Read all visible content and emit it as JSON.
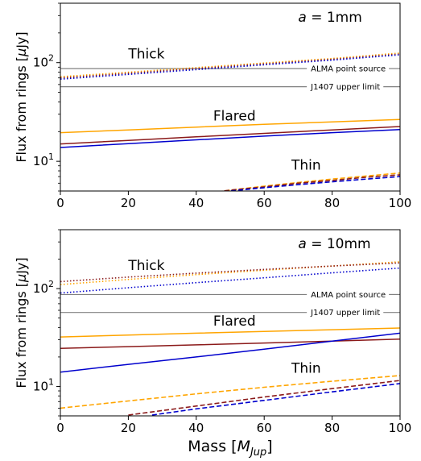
{
  "chart_data": {
    "xlabel_main": "Mass [",
    "xlabel_sym": "M",
    "xlabel_sub": "Jup",
    "xlabel_end": "]",
    "panels": [
      {
        "type": "line",
        "annotation_var": "a",
        "annotation_val": " = 1mm",
        "ylabel_main": "Flux from rings [",
        "ylabel_mu": "μ",
        "ylabel_end": "Jy]",
        "yscale": "log",
        "xlim": [
          0,
          100
        ],
        "ylim": [
          5,
          400
        ],
        "xticks": [
          "0",
          "20",
          "40",
          "60",
          "80",
          "100"
        ],
        "yticks": [
          {
            "v": 10,
            "base": "10",
            "exp": "1"
          },
          {
            "v": 100,
            "base": "10",
            "exp": "2"
          }
        ],
        "groups": [
          {
            "label": "Thick",
            "label_x": 20,
            "label_y": 110
          },
          {
            "label": "Flared",
            "label_x": 45,
            "label_y": 26
          },
          {
            "label": "Thin",
            "label_x": 68,
            "label_y": 8.2
          }
        ],
        "reference_lines": [
          {
            "label": "ALMA point source",
            "y": 87,
            "color": "#808080"
          },
          {
            "label": "J1407 upper limit",
            "y": 57,
            "color": "#808080"
          }
        ],
        "series": [
          {
            "group": "Thick",
            "color": "#ffa500",
            "style": "dotted",
            "x": [
              0,
              20,
              40,
              60,
              80,
              100
            ],
            "y": [
              72,
              80,
              89,
              99,
              110,
              125
            ]
          },
          {
            "group": "Thick",
            "color": "#8b1a1a",
            "style": "dotted",
            "x": [
              0,
              20,
              40,
              60,
              80,
              100
            ],
            "y": [
              70,
              78,
              87,
              97,
              108,
              122
            ]
          },
          {
            "group": "Thick",
            "color": "#0000cd",
            "style": "dotted",
            "x": [
              0,
              20,
              40,
              60,
              80,
              100
            ],
            "y": [
              68,
              76,
              85,
              95,
              106,
              120
            ]
          },
          {
            "group": "Flared",
            "color": "#ffa500",
            "style": "solid",
            "x": [
              0,
              20,
              40,
              60,
              80,
              100
            ],
            "y": [
              19.5,
              20.8,
              22.2,
              23.7,
              25.1,
              26.5
            ]
          },
          {
            "group": "Flared",
            "color": "#8b1a1a",
            "style": "solid",
            "x": [
              0,
              20,
              40,
              60,
              80,
              100
            ],
            "y": [
              15,
              16.3,
              17.7,
              19.2,
              20.8,
              22.5
            ]
          },
          {
            "group": "Flared",
            "color": "#0000cd",
            "style": "solid",
            "x": [
              0,
              20,
              40,
              60,
              80,
              100
            ],
            "y": [
              13.8,
              15.1,
              16.5,
              18,
              19.5,
              21
            ]
          },
          {
            "group": "Thin",
            "color": "#ffa500",
            "style": "dashed",
            "x": [
              40,
              50,
              60,
              70,
              80,
              90,
              100
            ],
            "y": [
              4.6,
              5.1,
              5.6,
              6.1,
              6.6,
              7.1,
              7.6
            ]
          },
          {
            "group": "Thin",
            "color": "#8b1a1a",
            "style": "dashed",
            "x": [
              44,
              50,
              60,
              70,
              80,
              90,
              100
            ],
            "y": [
              4.8,
              5.1,
              5.5,
              6.0,
              6.4,
              6.9,
              7.3
            ]
          },
          {
            "group": "Thin",
            "color": "#0000cd",
            "style": "dashed",
            "x": [
              46,
              50,
              60,
              70,
              80,
              90,
              100
            ],
            "y": [
              4.8,
              5.0,
              5.4,
              5.8,
              6.2,
              6.6,
              7.0
            ]
          }
        ]
      },
      {
        "type": "line",
        "annotation_var": "a",
        "annotation_val": " = 10mm",
        "ylabel_main": "Flux from rings [",
        "ylabel_mu": "μ",
        "ylabel_end": "Jy]",
        "yscale": "log",
        "xlim": [
          0,
          100
        ],
        "ylim": [
          5,
          400
        ],
        "xticks": [
          "0",
          "20",
          "40",
          "60",
          "80",
          "100"
        ],
        "yticks": [
          {
            "v": 10,
            "base": "10",
            "exp": "1"
          },
          {
            "v": 100,
            "base": "10",
            "exp": "2"
          }
        ],
        "groups": [
          {
            "label": "Thick",
            "label_x": 20,
            "label_y": 155
          },
          {
            "label": "Flared",
            "label_x": 45,
            "label_y": 42
          },
          {
            "label": "Thin",
            "label_x": 68,
            "label_y": 13.8
          }
        ],
        "reference_lines": [
          {
            "label": "ALMA point source",
            "y": 87,
            "color": "#808080"
          },
          {
            "label": "J1407 upper limit",
            "y": 57,
            "color": "#808080"
          }
        ],
        "series": [
          {
            "group": "Thick",
            "color": "#ffa500",
            "style": "dotted",
            "x": [
              0,
              20,
              40,
              60,
              80,
              100
            ],
            "y": [
              110,
              124,
              139,
              154,
              170,
              188
            ]
          },
          {
            "group": "Thick",
            "color": "#8b1a1a",
            "style": "dotted",
            "x": [
              0,
              20,
              40,
              60,
              80,
              100
            ],
            "y": [
              118,
              131,
              144,
              157,
              170,
              183
            ]
          },
          {
            "group": "Thick",
            "color": "#0000cd",
            "style": "dotted",
            "x": [
              0,
              20,
              40,
              60,
              80,
              100
            ],
            "y": [
              90,
              102,
              115,
              129,
              145,
              162
            ]
          },
          {
            "group": "Flared",
            "color": "#ffa500",
            "style": "solid",
            "x": [
              0,
              20,
              40,
              60,
              80,
              100
            ],
            "y": [
              32,
              33.5,
              35,
              36.5,
              38,
              39.5
            ]
          },
          {
            "group": "Flared",
            "color": "#8b1a1a",
            "style": "solid",
            "x": [
              0,
              20,
              40,
              60,
              80,
              100
            ],
            "y": [
              24.5,
              25.5,
              26.6,
              27.8,
              29,
              30.5
            ]
          },
          {
            "group": "Flared",
            "color": "#0000cd",
            "style": "solid",
            "x": [
              0,
              20,
              40,
              60,
              80,
              100
            ],
            "y": [
              14,
              16.8,
              20,
              24,
              29,
              35
            ]
          },
          {
            "group": "Thin",
            "color": "#ffa500",
            "style": "dashed",
            "x": [
              0,
              20,
              40,
              60,
              80,
              100
            ],
            "y": [
              6,
              7.1,
              8.4,
              9.8,
              11.3,
              12.9
            ]
          },
          {
            "group": "Thin",
            "color": "#8b1a1a",
            "style": "dashed",
            "x": [
              20,
              40,
              60,
              80,
              100
            ],
            "y": [
              5.1,
              6.3,
              7.8,
              9.5,
              11.5
            ]
          },
          {
            "group": "Thin",
            "color": "#0000cd",
            "style": "dashed",
            "x": [
              27,
              40,
              60,
              80,
              100
            ],
            "y": [
              5.1,
              5.9,
              7.2,
              8.8,
              10.7
            ]
          }
        ]
      }
    ]
  }
}
